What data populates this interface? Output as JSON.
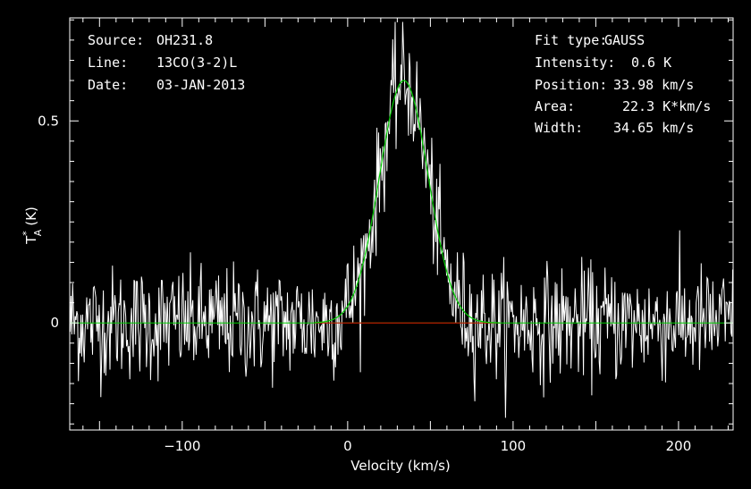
{
  "source_label": "Source:",
  "source_value": "OH231.8",
  "line_label": "Line:",
  "line_value": "13CO(3-2)L",
  "date_label": "Date:",
  "date_value": "03-JAN-2013",
  "fit": {
    "type_label": "Fit type:",
    "type_value": "GAUSS",
    "intensity_label": "Intensity:",
    "intensity_value": "0.6 K",
    "position_label": "Position:",
    "position_value": "33.98 km/s",
    "area_label": "Area:",
    "area_value": "22.3 K*km/s",
    "width_label": "Width:",
    "width_value": "34.65 km/s"
  },
  "colors": {
    "background": "#000000",
    "spectrum": "#ffffff",
    "fit": "#00d000",
    "baseline": "#00d000",
    "window": "#e00000",
    "axes": "#ffffff"
  },
  "chart_data": {
    "type": "line",
    "title": "",
    "xlabel": "Velocity (km/s)",
    "ylabel_main": "T",
    "ylabel_sup": "*",
    "ylabel_sub": "A",
    "ylabel_unit": "(K)",
    "xlim": [
      -168,
      233
    ],
    "ylim": [
      -0.265,
      0.755
    ],
    "xticks": [
      -100,
      0,
      100,
      200
    ],
    "xtick_labels": [
      "−100",
      "0",
      "100",
      "200"
    ],
    "yticks": [
      0,
      0.5
    ],
    "ytick_labels": [
      "0",
      "0.5"
    ],
    "grid": false,
    "gaussian_fit": {
      "amplitude": 0.6,
      "center": 33.98,
      "fwhm": 34.65,
      "area": 22.3
    },
    "fit_window": [
      -20,
      92
    ],
    "baseline": 0,
    "noise_rms": 0.07,
    "n_channels": 800
  }
}
